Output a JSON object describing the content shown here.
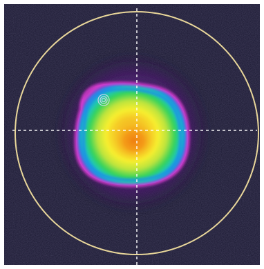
{
  "image": {
    "subject": "beam-profile",
    "colors": {
      "background": "#17152e",
      "aperture_ring": "#e9d79a",
      "crosshair": "#ffffff",
      "violet_halo": "#4a176d",
      "magenta_ring": "#d33bcd",
      "blue_ring": "#1d8ee8",
      "green_band": "#31d35b",
      "yellow_core": "#f7ef2f",
      "orange_center": "#f39a18"
    }
  }
}
